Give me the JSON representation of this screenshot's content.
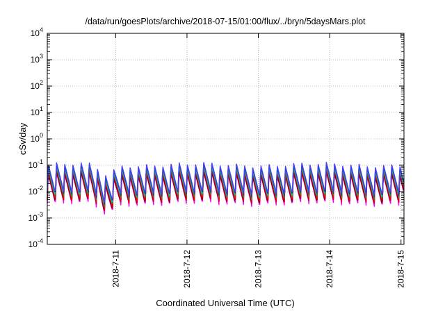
{
  "chart_data": {
    "type": "line",
    "title": "/data/run/goesPlots/archive/2018-07-15/01:00/flux/../bryn/5daysMars.plot",
    "xlabel": "Coordinated Universal Time (UTC)",
    "ylabel": "cSv/day",
    "yscale": "log",
    "ylim": [
      0.0001,
      10000
    ],
    "xlim": [
      "2018-07-10 01:00",
      "2018-07-15 01:00"
    ],
    "xticks": [
      "2018-7-11",
      "2018-7-12",
      "2018-7-13",
      "2018-7-14",
      "2018-7-15"
    ],
    "yticks": [
      {
        "base": "10",
        "exp": "-4"
      },
      {
        "base": "10",
        "exp": "-3"
      },
      {
        "base": "10",
        "exp": "-2"
      },
      {
        "base": "10",
        "exp": "-1"
      },
      {
        "base": "10",
        "exp": "0"
      },
      {
        "base": "10",
        "exp": "1"
      },
      {
        "base": "10",
        "exp": "2"
      },
      {
        "base": "10",
        "exp": "3"
      },
      {
        "base": "10",
        "exp": "4"
      }
    ],
    "grid": true,
    "legend": "none",
    "pattern": {
      "shape": "sawtooth",
      "period_hours": 2.75,
      "dip_date": "2018-07-10 21:00"
    },
    "series": [
      {
        "color": "#ff00ff",
        "peak": 0.045,
        "trough": 0.0035
      },
      {
        "color": "#cc00cc",
        "peak": 0.055,
        "trough": 0.0042
      },
      {
        "color": "#800000",
        "peak": 0.05,
        "trough": 0.004
      },
      {
        "color": "#ff0000",
        "peak": 0.065,
        "trough": 0.005
      },
      {
        "color": "#2e8b57",
        "peak": 0.075,
        "trough": 0.006
      },
      {
        "color": "#00cccc",
        "peak": 0.085,
        "trough": 0.007
      },
      {
        "color": "#404040",
        "peak": 0.095,
        "trough": 0.008
      },
      {
        "color": "#4040ff",
        "peak": 0.11,
        "trough": 0.009
      }
    ]
  }
}
